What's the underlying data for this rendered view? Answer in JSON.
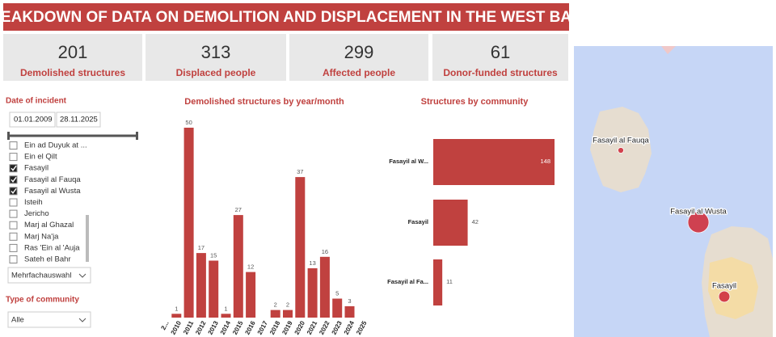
{
  "header": {
    "title": "BREAKDOWN OF DATA ON DEMOLITION AND DISPLACEMENT IN THE WEST BANK"
  },
  "kpis": [
    {
      "value": 201,
      "label": "Demolished structures"
    },
    {
      "value": 313,
      "label": "Displaced people"
    },
    {
      "value": 299,
      "label": "Affected people"
    },
    {
      "value": 61,
      "label": "Donor-funded structures"
    }
  ],
  "filters": {
    "date": {
      "label": "Date of incident",
      "start": "01.01.2009",
      "end": "28.11.2025"
    },
    "community_list": {
      "items": [
        {
          "label": "Ein ad Duyuk at ...",
          "checked": false
        },
        {
          "label": "Ein el Qilt",
          "checked": false
        },
        {
          "label": "Fasayil",
          "checked": true
        },
        {
          "label": "Fasayil al Fauqa",
          "checked": true
        },
        {
          "label": "Fasayil al Wusta",
          "checked": true
        },
        {
          "label": "Isteih",
          "checked": false
        },
        {
          "label": "Jericho",
          "checked": false
        },
        {
          "label": "Marj al Ghazal",
          "checked": false
        },
        {
          "label": "Marj Na'ja",
          "checked": false
        },
        {
          "label": "Ras 'Ein al 'Auja",
          "checked": false
        },
        {
          "label": "Sateh el Bahr",
          "checked": false
        }
      ]
    },
    "community_dropdown": "Mehrfachauswahl",
    "type": {
      "label": "Type of community",
      "value": "Alle"
    }
  },
  "charts": [
    {
      "type": "bar",
      "title": "Demolished structures by year/month",
      "color": "#c0413f",
      "categories": [
        "2...",
        "2010",
        "2011",
        "2012",
        "2013",
        "2014",
        "2015",
        "2016",
        "2017",
        "2018",
        "2019",
        "2020",
        "2021",
        "2022",
        "2023",
        "2024",
        "2025"
      ],
      "values": [
        null,
        1,
        50,
        17,
        15,
        1,
        27,
        12,
        null,
        2,
        2,
        37,
        13,
        16,
        5,
        3,
        null
      ]
    },
    {
      "type": "hbar",
      "title": "Structures by community",
      "color": "#c0413f",
      "categories": [
        "Fasayil al W...",
        "Fasayil",
        "Fasayil al Fa..."
      ],
      "values": [
        148,
        42,
        11
      ]
    }
  ],
  "map": {
    "labels": [
      "Fasayil al Fauqa",
      "Fasayil al Wusta",
      "Fasayil"
    ]
  }
}
